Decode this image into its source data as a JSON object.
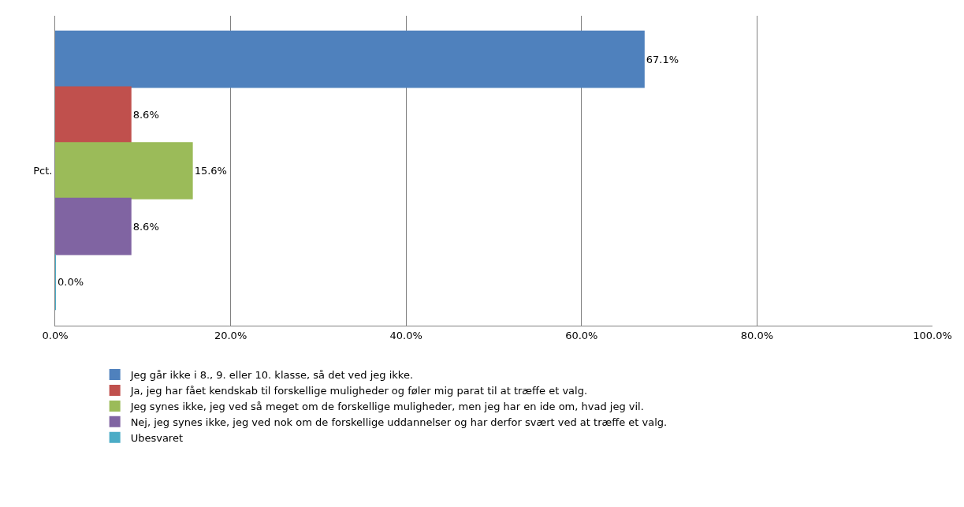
{
  "chart_data": {
    "type": "bar",
    "orientation": "horizontal",
    "categories": [
      "Pct."
    ],
    "series": [
      {
        "name": "Jeg går ikke i 8., 9. eller 10. klasse, så det ved jeg ikke.",
        "color": "#4f81bd",
        "values": [
          67.1
        ],
        "value_labels": [
          "67.1%"
        ]
      },
      {
        "name": "Ja, jeg har fået kendskab til forskellige muligheder og føler mig parat til at træffe et valg.",
        "color": "#c0504d",
        "values": [
          8.6
        ],
        "value_labels": [
          "8.6%"
        ]
      },
      {
        "name": "Jeg synes ikke, jeg ved så meget om de forskellige muligheder, men jeg har en ide om, hvad jeg vil.",
        "color": "#9bbb59",
        "values": [
          15.6
        ],
        "value_labels": [
          "15.6%"
        ]
      },
      {
        "name": "Nej, jeg synes ikke, jeg ved nok om de forskellige uddannelser og har derfor svært ved at træffe et valg.",
        "color": "#8064a2",
        "values": [
          8.6
        ],
        "value_labels": [
          "8.6%"
        ]
      },
      {
        "name": "Ubesvaret",
        "color": "#4bacc6",
        "values": [
          0.0
        ],
        "value_labels": [
          "0.0%"
        ]
      }
    ],
    "xlim": [
      0,
      100
    ],
    "xticks": [
      {
        "value": 0,
        "label": "0.0%"
      },
      {
        "value": 20,
        "label": "20.0%"
      },
      {
        "value": 40,
        "label": "40.0%"
      },
      {
        "value": 60,
        "label": "60.0%"
      },
      {
        "value": 80,
        "label": "80.0%"
      },
      {
        "value": 100,
        "label": "100.0%"
      }
    ],
    "grid": "x",
    "legend": "bottom"
  }
}
